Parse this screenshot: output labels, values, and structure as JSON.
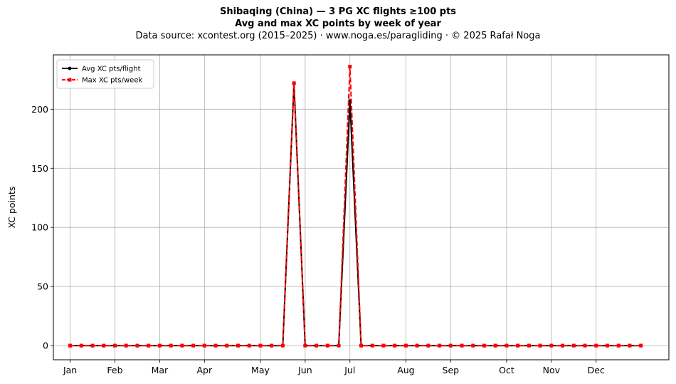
{
  "chart_data": {
    "type": "line",
    "title_lines": [
      "Shibaqing (China)  —  3 PG XC flights ≥100 pts",
      "Avg and max XC points by week of year",
      "Data source: xcontest.org (2015–2025)  ·  www.noga.es/paragliding  ·  © 2025 Rafał Noga"
    ],
    "xlabel": "",
    "ylabel": "XC points",
    "ylim": [
      -12,
      246
    ],
    "yticks": [
      0,
      50,
      100,
      150,
      200
    ],
    "xlim": [
      -1.5,
      53.5
    ],
    "xticks": [
      {
        "week": 0,
        "label": "Jan"
      },
      {
        "week": 4,
        "label": "Feb"
      },
      {
        "week": 8,
        "label": "Mar"
      },
      {
        "week": 12,
        "label": "Apr"
      },
      {
        "week": 17,
        "label": "May"
      },
      {
        "week": 21,
        "label": "Jun"
      },
      {
        "week": 25,
        "label": "Jul"
      },
      {
        "week": 30,
        "label": "Aug"
      },
      {
        "week": 34,
        "label": "Sep"
      },
      {
        "week": 39,
        "label": "Oct"
      },
      {
        "week": 43,
        "label": "Nov"
      },
      {
        "week": 47,
        "label": "Dec"
      }
    ],
    "grid": true,
    "legend_position": "top-left",
    "x": [
      0,
      1,
      2,
      3,
      4,
      5,
      6,
      7,
      8,
      9,
      10,
      11,
      12,
      13,
      14,
      15,
      16,
      17,
      18,
      19,
      20,
      21,
      22,
      23,
      24,
      25,
      26,
      27,
      28,
      29,
      30,
      31,
      32,
      33,
      34,
      35,
      36,
      37,
      38,
      39,
      40,
      41,
      42,
      43,
      44,
      45,
      46,
      47,
      48,
      49,
      50,
      51
    ],
    "series": [
      {
        "name": "Avg XC pts/flight",
        "color": "#000000",
        "marker": "circle",
        "dash": "solid",
        "values": [
          0,
          0,
          0,
          0,
          0,
          0,
          0,
          0,
          0,
          0,
          0,
          0,
          0,
          0,
          0,
          0,
          0,
          0,
          0,
          0,
          222,
          0,
          0,
          0,
          0,
          207,
          0,
          0,
          0,
          0,
          0,
          0,
          0,
          0,
          0,
          0,
          0,
          0,
          0,
          0,
          0,
          0,
          0,
          0,
          0,
          0,
          0,
          0,
          0,
          0,
          0,
          0
        ]
      },
      {
        "name": "Max XC pts/week",
        "color": "#ff0000",
        "marker": "square",
        "dash": "dashed",
        "values": [
          0,
          0,
          0,
          0,
          0,
          0,
          0,
          0,
          0,
          0,
          0,
          0,
          0,
          0,
          0,
          0,
          0,
          0,
          0,
          0,
          222,
          0,
          0,
          0,
          0,
          236,
          0,
          0,
          0,
          0,
          0,
          0,
          0,
          0,
          0,
          0,
          0,
          0,
          0,
          0,
          0,
          0,
          0,
          0,
          0,
          0,
          0,
          0,
          0,
          0,
          0,
          0
        ]
      }
    ]
  }
}
